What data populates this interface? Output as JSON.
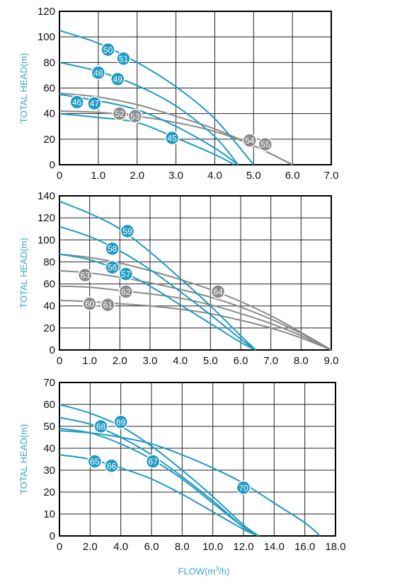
{
  "colors": {
    "blue": "#1e9ac4",
    "gray": "#8a8a8a",
    "grid": "#222222",
    "label_text": "#3aa6c9"
  },
  "x_axis_label_prefix": "FLOW(m",
  "x_axis_label_sup": "3",
  "x_axis_label_suffix": "/h)",
  "chart_data": [
    {
      "type": "line",
      "ylabel": "TOTAL HEAD(m)",
      "xlim": [
        0,
        7
      ],
      "ylim": [
        0,
        120
      ],
      "x_ticks": [
        "0",
        "1.0",
        "2.0",
        "3.0",
        "4.0",
        "5.0",
        "6.0",
        "7.0"
      ],
      "y_ticks": [
        "0",
        "20",
        "40",
        "60",
        "80",
        "100",
        "120"
      ],
      "grid": true,
      "series": [
        {
          "label": "45",
          "color": "blue",
          "points": [
            [
              0,
              40
            ],
            [
              1,
              37
            ],
            [
              2,
              33
            ],
            [
              3,
              21
            ],
            [
              4,
              8
            ],
            [
              4.5,
              0
            ]
          ],
          "marker": [
            2.9,
            21
          ]
        },
        {
          "label": "46",
          "color": "blue",
          "points": [
            [
              0,
              55
            ],
            [
              1,
              50
            ],
            [
              2,
              43
            ],
            [
              3,
              30
            ],
            [
              4,
              13
            ],
            [
              4.6,
              0
            ]
          ],
          "marker": [
            0.45,
            49
          ]
        },
        {
          "label": "47",
          "color": "blue",
          "points": [
            [
              0,
              55
            ],
            [
              1,
              50
            ],
            [
              2,
              43
            ],
            [
              3,
              30
            ],
            [
              4,
              13
            ],
            [
              4.6,
              0
            ]
          ],
          "marker": [
            0.9,
            48
          ]
        },
        {
          "label": "48",
          "color": "blue",
          "points": [
            [
              0,
              80
            ],
            [
              1,
              73
            ],
            [
              2,
              62
            ],
            [
              3,
              46
            ],
            [
              4,
              22
            ],
            [
              4.6,
              0
            ]
          ],
          "marker": [
            1.0,
            72
          ]
        },
        {
          "label": "49",
          "color": "blue",
          "points": [
            [
              0,
              80
            ],
            [
              1,
              73
            ],
            [
              2,
              62
            ],
            [
              3,
              46
            ],
            [
              4,
              22
            ],
            [
              4.6,
              0
            ]
          ],
          "marker": [
            1.5,
            67
          ]
        },
        {
          "label": "50",
          "color": "blue",
          "points": [
            [
              0,
              105
            ],
            [
              1,
              95
            ],
            [
              2,
              80
            ],
            [
              3,
              61
            ],
            [
              4,
              36
            ],
            [
              5,
              0
            ]
          ],
          "marker": [
            1.25,
            90
          ]
        },
        {
          "label": "51",
          "color": "blue",
          "points": [
            [
              0,
              105
            ],
            [
              1,
              95
            ],
            [
              2,
              80
            ],
            [
              3,
              61
            ],
            [
              4,
              36
            ],
            [
              5,
              0
            ]
          ],
          "marker": [
            1.65,
            83
          ]
        },
        {
          "label": "52",
          "color": "gray",
          "points": [
            [
              0,
              42
            ],
            [
              1,
              41
            ],
            [
              2,
              38
            ],
            [
              3,
              33
            ],
            [
              4,
              26
            ],
            [
              5,
              15
            ],
            [
              6,
              0
            ]
          ],
          "marker": [
            1.55,
            40
          ]
        },
        {
          "label": "53",
          "color": "gray",
          "points": [
            [
              0,
              42
            ],
            [
              1,
              41
            ],
            [
              2,
              38
            ],
            [
              3,
              33
            ],
            [
              4,
              26
            ],
            [
              5,
              15
            ],
            [
              6,
              0
            ]
          ],
          "marker": [
            1.95,
            38
          ]
        },
        {
          "label": "54",
          "color": "gray",
          "points": [
            [
              0,
              56
            ],
            [
              1,
              53
            ],
            [
              2,
              47
            ],
            [
              3,
              38
            ],
            [
              4,
              28
            ],
            [
              5,
              15
            ],
            [
              6,
              0
            ]
          ],
          "marker": [
            4.9,
            19
          ]
        },
        {
          "label": "55",
          "color": "gray",
          "points": [
            [
              0,
              56
            ],
            [
              1,
              53
            ],
            [
              2,
              47
            ],
            [
              3,
              38
            ],
            [
              4,
              28
            ],
            [
              5,
              15
            ],
            [
              6,
              0
            ]
          ],
          "marker": [
            5.3,
            16
          ]
        }
      ]
    },
    {
      "type": "line",
      "ylabel": "TOTAL HEAD(m)",
      "xlim": [
        0,
        9
      ],
      "ylim": [
        0,
        140
      ],
      "x_ticks": [
        "0",
        "1.0",
        "2.0",
        "3.0",
        "4.0",
        "5.0",
        "6.0",
        "7.0",
        "8.0",
        "9.0"
      ],
      "y_ticks": [
        "0",
        "20",
        "40",
        "60",
        "80",
        "100",
        "120",
        "140"
      ],
      "grid": true,
      "series": [
        {
          "label": "56",
          "color": "blue",
          "points": [
            [
              0,
              87
            ],
            [
              1,
              82
            ],
            [
              2,
              72
            ],
            [
              3,
              58
            ],
            [
              4,
              41
            ],
            [
              5,
              24
            ],
            [
              6,
              7
            ],
            [
              6.5,
              0
            ]
          ],
          "marker": [
            1.75,
            75
          ]
        },
        {
          "label": "57",
          "color": "blue",
          "points": [
            [
              0,
              87
            ],
            [
              1,
              82
            ],
            [
              2,
              72
            ],
            [
              3,
              58
            ],
            [
              4,
              41
            ],
            [
              5,
              24
            ],
            [
              6,
              7
            ],
            [
              6.5,
              0
            ]
          ],
          "marker": [
            2.2,
            69
          ]
        },
        {
          "label": "58",
          "color": "blue",
          "points": [
            [
              0,
              112
            ],
            [
              1,
              103
            ],
            [
              2,
              90
            ],
            [
              3,
              73
            ],
            [
              4,
              53
            ],
            [
              5,
              32
            ],
            [
              6,
              10
            ],
            [
              6.5,
              0
            ]
          ],
          "marker": [
            1.75,
            92
          ]
        },
        {
          "label": "59",
          "color": "blue",
          "points": [
            [
              0,
              135
            ],
            [
              1,
              124
            ],
            [
              2,
              110
            ],
            [
              3,
              89
            ],
            [
              4,
              65
            ],
            [
              5,
              40
            ],
            [
              6,
              13
            ],
            [
              6.5,
              0
            ]
          ],
          "marker": [
            2.25,
            108
          ]
        },
        {
          "label": "60",
          "color": "gray",
          "points": [
            [
              0,
              45
            ],
            [
              1,
              44
            ],
            [
              2,
              42
            ],
            [
              3,
              40
            ],
            [
              4,
              37
            ],
            [
              5,
              33
            ],
            [
              6,
              27
            ],
            [
              7,
              20
            ],
            [
              8,
              11
            ],
            [
              9,
              0
            ]
          ],
          "marker": [
            1.0,
            42
          ]
        },
        {
          "label": "61",
          "color": "gray",
          "points": [
            [
              0,
              45
            ],
            [
              1,
              44
            ],
            [
              2,
              42
            ],
            [
              3,
              40
            ],
            [
              4,
              37
            ],
            [
              5,
              33
            ],
            [
              6,
              27
            ],
            [
              7,
              20
            ],
            [
              8,
              11
            ],
            [
              9,
              0
            ]
          ],
          "marker": [
            1.6,
            41
          ]
        },
        {
          "label": "62",
          "color": "gray",
          "points": [
            [
              0,
              58
            ],
            [
              1,
              57
            ],
            [
              2,
              54
            ],
            [
              3,
              51
            ],
            [
              4,
              47
            ],
            [
              5,
              41
            ],
            [
              6,
              33
            ],
            [
              7,
              24
            ],
            [
              8,
              13
            ],
            [
              9,
              0
            ]
          ],
          "marker": [
            2.2,
            53
          ]
        },
        {
          "label": "63",
          "color": "gray",
          "points": [
            [
              0,
              72
            ],
            [
              1,
              70
            ],
            [
              2,
              66
            ],
            [
              3,
              61
            ],
            [
              4,
              55
            ],
            [
              5,
              48
            ],
            [
              6,
              39
            ],
            [
              7,
              28
            ],
            [
              8,
              15
            ],
            [
              9,
              0
            ]
          ],
          "marker": [
            0.85,
            68
          ]
        },
        {
          "label": "64",
          "color": "gray",
          "points": [
            [
              0,
              87
            ],
            [
              1,
              84
            ],
            [
              2,
              79
            ],
            [
              3,
              72
            ],
            [
              4,
              64
            ],
            [
              5,
              55
            ],
            [
              6,
              44
            ],
            [
              7,
              31
            ],
            [
              8,
              16
            ],
            [
              9,
              0
            ]
          ],
          "marker": [
            5.25,
            53
          ]
        }
      ]
    },
    {
      "type": "line",
      "ylabel": "TOTAL HEAD(m)",
      "xlim": [
        0,
        18
      ],
      "ylim": [
        0,
        70
      ],
      "x_ticks": [
        "0",
        "2.0",
        "4.0",
        "6.0",
        "8.0",
        "10.0",
        "12.0",
        "14.0",
        "16.0",
        "18.0"
      ],
      "y_ticks": [
        "0",
        "10",
        "20",
        "30",
        "40",
        "50",
        "60",
        "70"
      ],
      "grid": true,
      "series": [
        {
          "label": "65",
          "color": "blue",
          "points": [
            [
              0,
              37
            ],
            [
              2,
              35
            ],
            [
              4,
              31
            ],
            [
              6,
              26
            ],
            [
              8,
              19
            ],
            [
              10,
              11
            ],
            [
              12,
              3
            ],
            [
              13,
              0
            ]
          ],
          "marker": [
            2.3,
            34
          ]
        },
        {
          "label": "66",
          "color": "blue",
          "points": [
            [
              0,
              37
            ],
            [
              2,
              35
            ],
            [
              4,
              31
            ],
            [
              6,
              26
            ],
            [
              8,
              19
            ],
            [
              10,
              11
            ],
            [
              12,
              3
            ],
            [
              13,
              0
            ]
          ],
          "marker": [
            3.4,
            32
          ]
        },
        {
          "label": "67",
          "color": "blue",
          "points": [
            [
              0,
              49
            ],
            [
              2,
              47
            ],
            [
              4,
              42
            ],
            [
              6,
              35
            ],
            [
              8,
              26
            ],
            [
              10,
              15
            ],
            [
              12,
              4
            ],
            [
              13,
              0
            ]
          ],
          "marker": [
            6.1,
            34
          ]
        },
        {
          "label": "68",
          "color": "blue",
          "points": [
            [
              0,
              54
            ],
            [
              2,
              51
            ],
            [
              4,
              45
            ],
            [
              6,
              37
            ],
            [
              8,
              27
            ],
            [
              10,
              16
            ],
            [
              12,
              4
            ],
            [
              13,
              0
            ]
          ],
          "marker": [
            2.7,
            50
          ]
        },
        {
          "label": "69",
          "color": "blue",
          "points": [
            [
              0,
              60
            ],
            [
              2,
              56
            ],
            [
              4,
              50
            ],
            [
              6,
              41
            ],
            [
              8,
              30
            ],
            [
              10,
              18
            ],
            [
              12,
              5
            ],
            [
              13,
              0
            ]
          ],
          "marker": [
            4.0,
            52
          ]
        },
        {
          "label": "70",
          "color": "blue",
          "points": [
            [
              0,
              48
            ],
            [
              2,
              47
            ],
            [
              4,
              45
            ],
            [
              6,
              42
            ],
            [
              8,
              37
            ],
            [
              10,
              31
            ],
            [
              12,
              24
            ],
            [
              14,
              15
            ],
            [
              16,
              6
            ],
            [
              17,
              0
            ]
          ],
          "marker": [
            12.0,
            22
          ]
        }
      ]
    }
  ]
}
